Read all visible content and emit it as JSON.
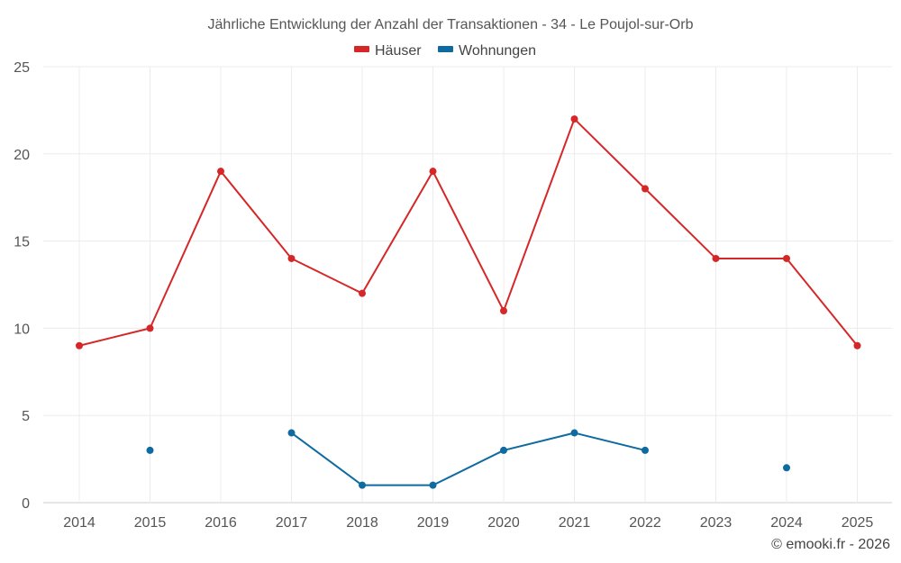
{
  "chart_data": {
    "type": "line",
    "title": "Jährliche Entwicklung der Anzahl der Transaktionen - 34 - Le Poujol-sur-Orb",
    "categories": [
      "2014",
      "2015",
      "2016",
      "2017",
      "2018",
      "2019",
      "2020",
      "2021",
      "2022",
      "2023",
      "2024",
      "2025"
    ],
    "ylim": [
      0,
      25
    ],
    "yticks": [
      "0",
      "5",
      "10",
      "15",
      "20",
      "25"
    ],
    "xlabel": "",
    "ylabel": "",
    "grid": true,
    "legend_position": "top-center",
    "series": [
      {
        "name": "Häuser",
        "color": "#d62728",
        "values": [
          9,
          10,
          19,
          14,
          12,
          19,
          11,
          22,
          18,
          14,
          14,
          9
        ]
      },
      {
        "name": "Wohnungen",
        "color": "#0e6aa0",
        "values": [
          null,
          3,
          null,
          4,
          1,
          1,
          3,
          4,
          3,
          null,
          2,
          null
        ]
      }
    ]
  },
  "footer": {
    "credit": "© emooki.fr - 2026"
  }
}
